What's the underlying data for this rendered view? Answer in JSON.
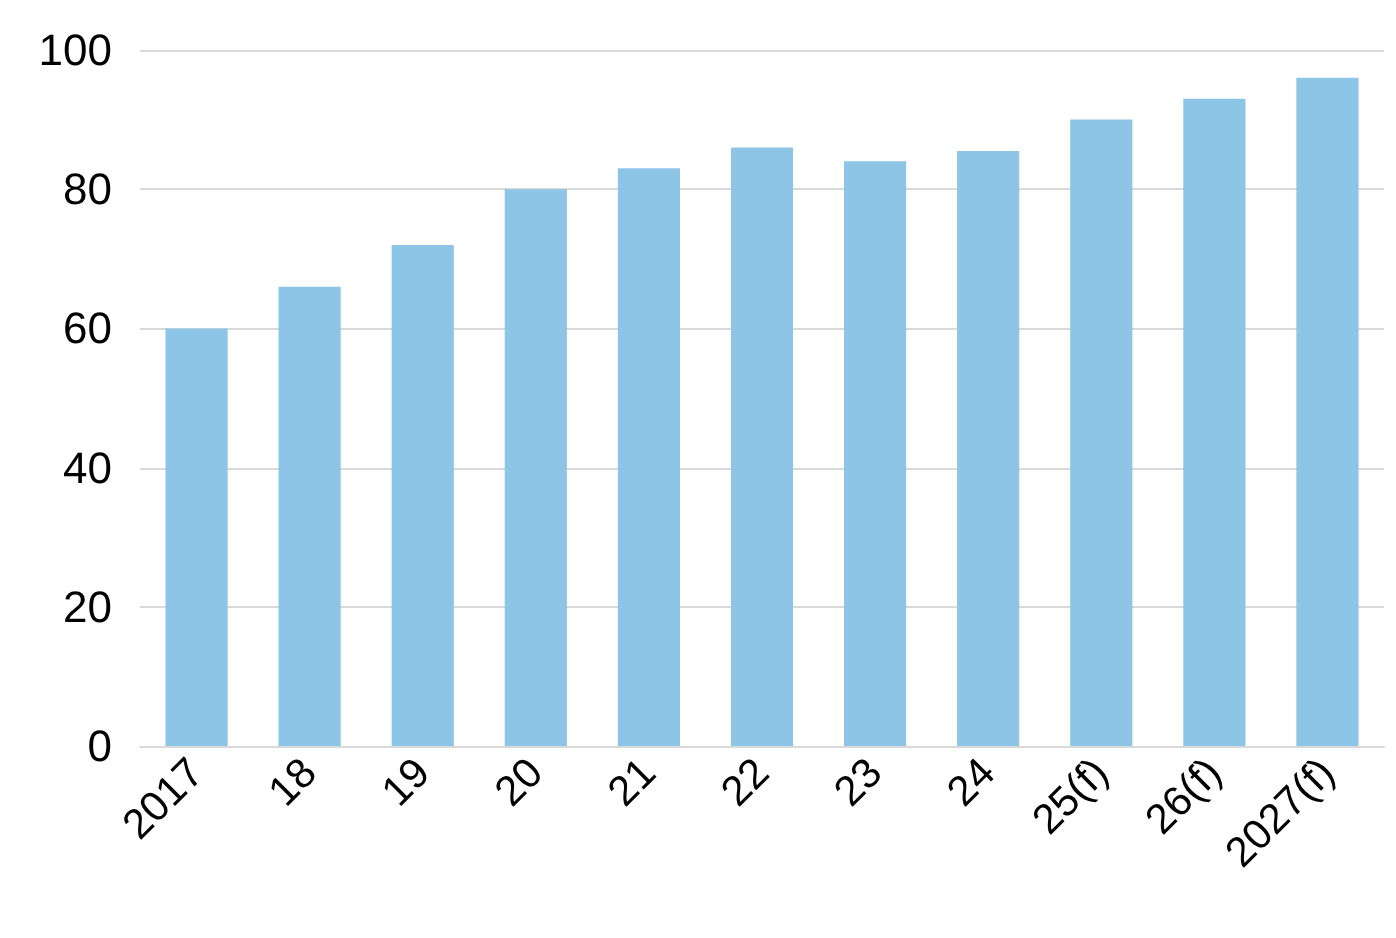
{
  "chart_data": {
    "type": "bar",
    "categories": [
      "2017",
      "18",
      "19",
      "20",
      "21",
      "22",
      "23",
      "24",
      "25(f)",
      "26(f)",
      "2027(f)"
    ],
    "values": [
      60,
      66,
      72,
      80,
      83,
      86,
      84,
      85.5,
      90,
      93,
      96
    ],
    "color": "#8dc5e7",
    "ylim": [
      0,
      100
    ],
    "yticks": [
      0,
      20,
      40,
      60,
      80,
      100
    ],
    "grid": "y"
  }
}
